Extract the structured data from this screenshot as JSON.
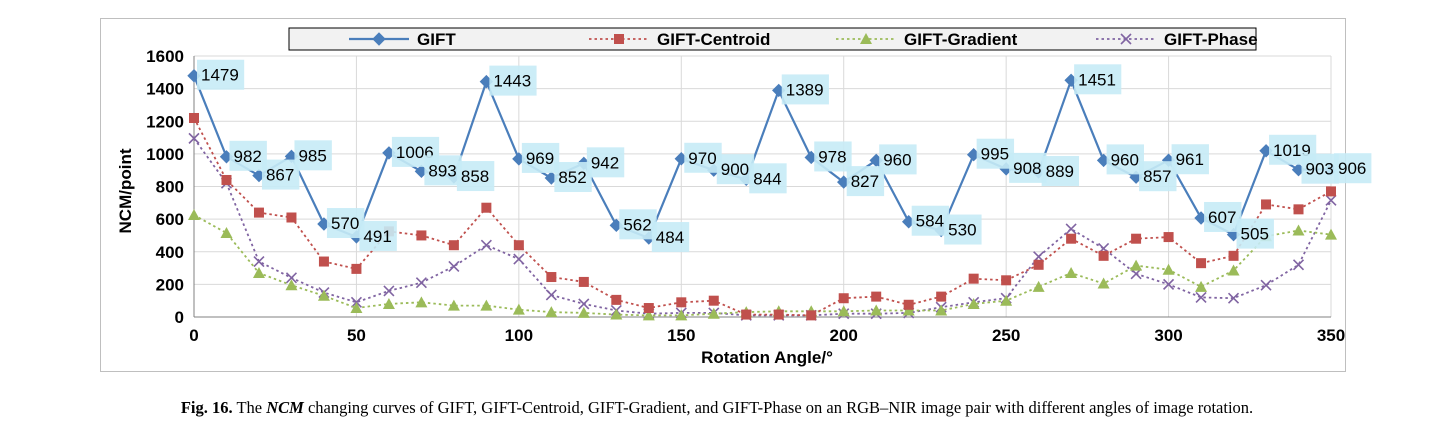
{
  "caption": {
    "label": "Fig. 16.",
    "pre": "The",
    "emph": "NCM",
    "post": "changing curves of GIFT, GIFT-Centroid, GIFT-Gradient, and GIFT-Phase on an RGB–NIR image pair with different angles of image rotation."
  },
  "chart_data": {
    "type": "line",
    "xlabel": "Rotation Angle/°",
    "ylabel": "NCM/point",
    "xlim": [
      0,
      350
    ],
    "ylim": [
      0,
      1600
    ],
    "xticks": [
      0,
      50,
      100,
      150,
      200,
      250,
      300,
      350
    ],
    "yticks": [
      0,
      200,
      400,
      600,
      800,
      1000,
      1200,
      1400,
      1600
    ],
    "grid": true,
    "legend": "top",
    "x": [
      0,
      10,
      20,
      30,
      40,
      50,
      60,
      70,
      80,
      90,
      100,
      110,
      120,
      130,
      140,
      150,
      160,
      170,
      180,
      190,
      200,
      210,
      220,
      230,
      240,
      250,
      260,
      270,
      280,
      290,
      300,
      310,
      320,
      330,
      340,
      350
    ],
    "series": [
      {
        "name": "GIFT",
        "color": "#4a7ebb",
        "marker": "diamond",
        "dash": "solid",
        "labeled": true,
        "values": [
          1479,
          982,
          867,
          985,
          570,
          491,
          1006,
          893,
          858,
          1443,
          969,
          852,
          942,
          562,
          484,
          970,
          900,
          844,
          1389,
          978,
          827,
          960,
          584,
          530,
          995,
          908,
          889,
          1451,
          960,
          857,
          961,
          607,
          505,
          1019,
          903,
          906
        ]
      },
      {
        "name": "GIFT-Centroid",
        "color": "#c0504d",
        "marker": "square",
        "dash": "dotted",
        "labeled": false,
        "values": [
          1220,
          840,
          640,
          610,
          340,
          295,
          525,
          500,
          440,
          670,
          440,
          245,
          215,
          105,
          55,
          90,
          100,
          15,
          15,
          10,
          115,
          125,
          75,
          125,
          235,
          225,
          320,
          480,
          375,
          480,
          490,
          330,
          375,
          690,
          660,
          770
        ]
      },
      {
        "name": "GIFT-Gradient",
        "color": "#9bbb59",
        "marker": "triangle",
        "dash": "dotted",
        "labeled": false,
        "values": [
          625,
          515,
          270,
          195,
          130,
          55,
          80,
          90,
          70,
          70,
          45,
          30,
          25,
          15,
          10,
          10,
          20,
          30,
          35,
          35,
          35,
          40,
          40,
          40,
          80,
          100,
          185,
          270,
          205,
          315,
          290,
          185,
          285,
          495,
          530,
          505
        ]
      },
      {
        "name": "GIFT-Phase",
        "color": "#8064a2",
        "marker": "cross",
        "dash": "dotted",
        "labeled": false,
        "values": [
          1095,
          820,
          340,
          240,
          150,
          90,
          160,
          210,
          310,
          440,
          355,
          135,
          80,
          40,
          20,
          25,
          25,
          10,
          10,
          10,
          20,
          20,
          25,
          60,
          90,
          115,
          370,
          540,
          420,
          265,
          200,
          120,
          115,
          195,
          320,
          715
        ]
      }
    ]
  }
}
